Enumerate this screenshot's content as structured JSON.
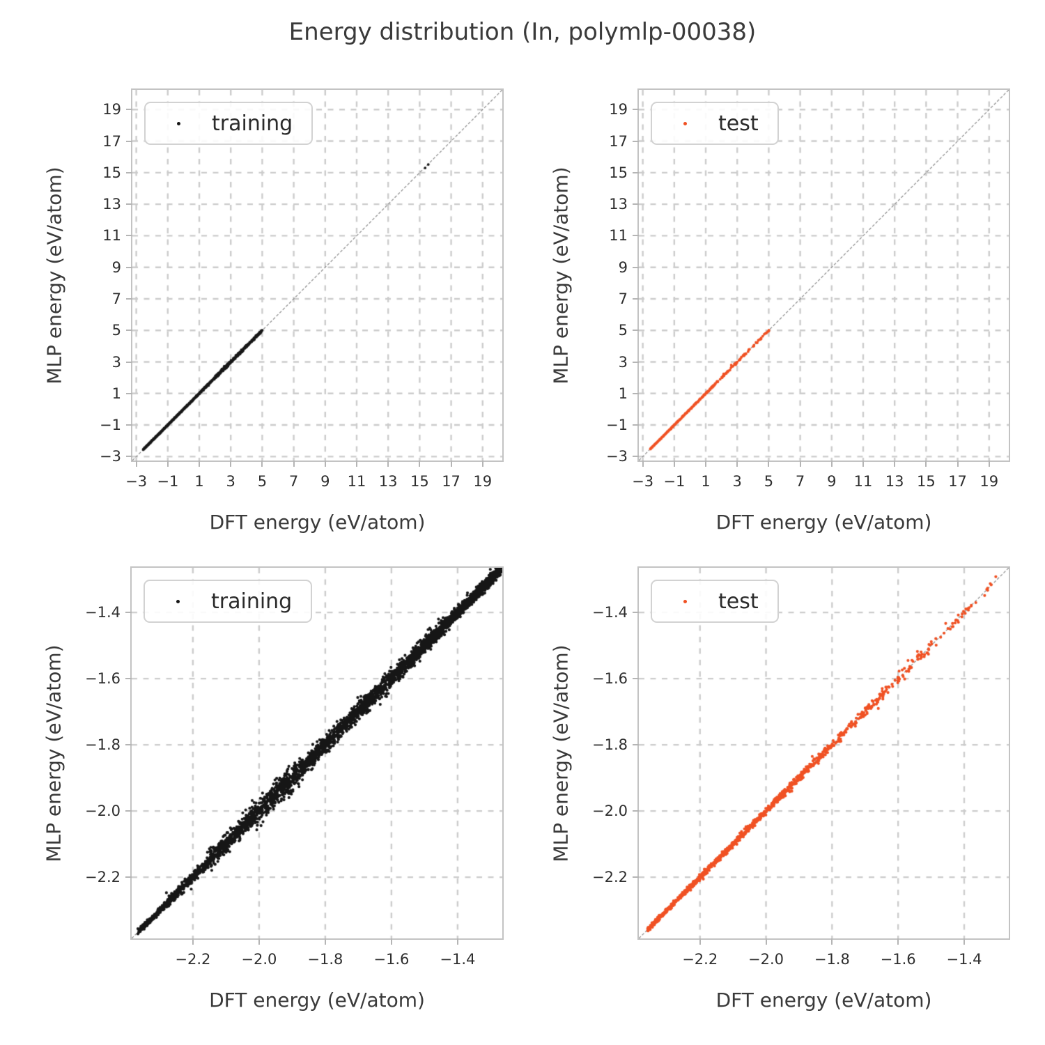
{
  "page": {
    "title": "Energy distribution (In, polymlp-00038)"
  },
  "colors": {
    "training": "#161616",
    "test": "#f05123",
    "grid": "#cccccc",
    "frame": "#c3c3c3",
    "diagonal": "#7f7f7f",
    "text": "#3a3a3a",
    "tick_text": "#2e2e2e"
  },
  "chart_data": [
    {
      "type": "scatter",
      "name": "training-overview",
      "series_label": "training",
      "color_key": "training",
      "xlabel": "DFT energy (eV/atom)",
      "ylabel": "MLP energy (eV/atom)",
      "xlim": [
        -3.25,
        20.25
      ],
      "ylim": [
        -3.25,
        20.25
      ],
      "xtickvals": [
        -3,
        -1,
        1,
        3,
        5,
        7,
        9,
        11,
        13,
        15,
        17,
        19
      ],
      "xticklabels": [
        "−3",
        "−1",
        "1",
        "3",
        "5",
        "7",
        "9",
        "11",
        "13",
        "15",
        "17",
        "19"
      ],
      "ytickvals": [
        -3,
        -1,
        1,
        3,
        5,
        7,
        9,
        11,
        13,
        15,
        17,
        19
      ],
      "yticklabels": [
        "−3",
        "−1",
        "1",
        "3",
        "5",
        "7",
        "9",
        "11",
        "13",
        "15",
        "17",
        "19"
      ],
      "identity_line": true,
      "grid": true,
      "legend_position": "upper-left",
      "marker_radius": 1.9,
      "seed": 101,
      "diagonal_segments": [
        {
          "from": -2.56,
          "to": -2.2,
          "n": 420,
          "noise": 0.012
        },
        {
          "from": -2.2,
          "to": -1.6,
          "n": 380,
          "noise": 0.014
        },
        {
          "from": -1.6,
          "to": -1.0,
          "n": 300,
          "noise": 0.015
        },
        {
          "from": -1.0,
          "to": -0.4,
          "n": 240,
          "noise": 0.016
        },
        {
          "from": -0.4,
          "to": 0.4,
          "n": 220,
          "noise": 0.018
        },
        {
          "from": 0.4,
          "to": 1.2,
          "n": 200,
          "noise": 0.02
        },
        {
          "from": 1.2,
          "to": 2.0,
          "n": 180,
          "noise": 0.025
        },
        {
          "from": 2.0,
          "to": 2.9,
          "n": 170,
          "noise": 0.045
        },
        {
          "from": 2.9,
          "to": 3.6,
          "n": 120,
          "noise": 0.04
        },
        {
          "from": 3.6,
          "to": 4.4,
          "n": 110,
          "noise": 0.035
        },
        {
          "from": 4.4,
          "to": 5.0,
          "n": 90,
          "noise": 0.03
        }
      ],
      "outliers": [
        [
          15.35,
          15.3
        ],
        [
          15.55,
          15.52
        ]
      ]
    },
    {
      "type": "scatter",
      "name": "test-overview",
      "series_label": "test",
      "color_key": "test",
      "xlabel": "DFT energy (eV/atom)",
      "ylabel": "MLP energy (eV/atom)",
      "xlim": [
        -3.25,
        20.25
      ],
      "ylim": [
        -3.25,
        20.25
      ],
      "xtickvals": [
        -3,
        -1,
        1,
        3,
        5,
        7,
        9,
        11,
        13,
        15,
        17,
        19
      ],
      "xticklabels": [
        "−3",
        "−1",
        "1",
        "3",
        "5",
        "7",
        "9",
        "11",
        "13",
        "15",
        "17",
        "19"
      ],
      "ytickvals": [
        -3,
        -1,
        1,
        3,
        5,
        7,
        9,
        11,
        13,
        15,
        17,
        19
      ],
      "yticklabels": [
        "−3",
        "−1",
        "1",
        "3",
        "5",
        "7",
        "9",
        "11",
        "13",
        "15",
        "17",
        "19"
      ],
      "identity_line": true,
      "grid": true,
      "legend_position": "upper-left",
      "marker_radius": 1.9,
      "seed": 202,
      "diagonal_segments": [
        {
          "from": -2.52,
          "to": -2.2,
          "n": 130,
          "noise": 0.01
        },
        {
          "from": -2.2,
          "to": -1.6,
          "n": 110,
          "noise": 0.012
        },
        {
          "from": -1.6,
          "to": -1.0,
          "n": 85,
          "noise": 0.014
        },
        {
          "from": -1.0,
          "to": -0.3,
          "n": 65,
          "noise": 0.015
        },
        {
          "from": -0.3,
          "to": 0.5,
          "n": 55,
          "noise": 0.018
        },
        {
          "from": 0.5,
          "to": 1.3,
          "n": 45,
          "noise": 0.022
        },
        {
          "from": 1.3,
          "to": 2.1,
          "n": 38,
          "noise": 0.03
        },
        {
          "from": 2.1,
          "to": 3.0,
          "n": 32,
          "noise": 0.05
        },
        {
          "from": 3.1,
          "to": 3.8,
          "n": 20,
          "noise": 0.04
        },
        {
          "from": 4.0,
          "to": 4.6,
          "n": 14,
          "noise": 0.035
        },
        {
          "from": 4.7,
          "to": 5.05,
          "n": 10,
          "noise": 0.03
        }
      ],
      "outliers": []
    },
    {
      "type": "scatter",
      "name": "training-zoom",
      "series_label": "training",
      "color_key": "training",
      "xlabel": "DFT energy (eV/atom)",
      "ylabel": "MLP energy (eV/atom)",
      "xlim": [
        -2.385,
        -1.265
      ],
      "ylim": [
        -2.385,
        -1.265
      ],
      "xtickvals": [
        -2.2,
        -2.0,
        -1.8,
        -1.6,
        -1.4
      ],
      "xticklabels": [
        "−2.2",
        "−2.0",
        "−1.8",
        "−1.6",
        "−1.4"
      ],
      "ytickvals": [
        -2.2,
        -2.0,
        -1.8,
        -1.6,
        -1.4
      ],
      "yticklabels": [
        "−2.2",
        "−2.0",
        "−1.8",
        "−1.6",
        "−1.4"
      ],
      "identity_line": true,
      "grid": true,
      "legend_position": "upper-left",
      "marker_radius": 2.1,
      "seed": 303,
      "diagonal_segments": [
        {
          "from": -2.365,
          "to": -2.28,
          "n": 260,
          "noise": 0.004
        },
        {
          "from": -2.28,
          "to": -2.15,
          "n": 320,
          "noise": 0.007
        },
        {
          "from": -2.15,
          "to": -2.02,
          "n": 400,
          "noise": 0.013
        },
        {
          "from": -2.02,
          "to": -1.88,
          "n": 420,
          "noise": 0.016
        },
        {
          "from": -1.88,
          "to": -1.72,
          "n": 450,
          "noise": 0.014
        },
        {
          "from": -1.72,
          "to": -1.56,
          "n": 500,
          "noise": 0.013
        },
        {
          "from": -1.56,
          "to": -1.42,
          "n": 550,
          "noise": 0.011
        },
        {
          "from": -1.42,
          "to": -1.267,
          "n": 800,
          "noise": 0.008
        }
      ],
      "outliers": [
        [
          -2.28,
          -2.247
        ],
        [
          -2.205,
          -2.236
        ],
        [
          -1.952,
          -1.906
        ],
        [
          -1.994,
          -2.044
        ],
        [
          -1.62,
          -1.585
        ]
      ]
    },
    {
      "type": "scatter",
      "name": "test-zoom",
      "series_label": "test",
      "color_key": "test",
      "xlabel": "DFT energy (eV/atom)",
      "ylabel": "MLP energy (eV/atom)",
      "xlim": [
        -2.385,
        -1.265
      ],
      "ylim": [
        -2.385,
        -1.265
      ],
      "xtickvals": [
        -2.2,
        -2.0,
        -1.8,
        -1.6,
        -1.4
      ],
      "xticklabels": [
        "−2.2",
        "−2.0",
        "−1.8",
        "−1.6",
        "−1.4"
      ],
      "ytickvals": [
        -2.2,
        -2.0,
        -1.8,
        -1.6,
        -1.4
      ],
      "yticklabels": [
        "−2.2",
        "−2.0",
        "−1.8",
        "−1.6",
        "−1.4"
      ],
      "identity_line": true,
      "grid": true,
      "legend_position": "upper-left",
      "marker_radius": 2.1,
      "seed": 404,
      "diagonal_segments": [
        {
          "from": -2.36,
          "to": -2.24,
          "n": 300,
          "noise": 0.003
        },
        {
          "from": -2.24,
          "to": -2.1,
          "n": 280,
          "noise": 0.004
        },
        {
          "from": -2.1,
          "to": -1.95,
          "n": 230,
          "noise": 0.005
        },
        {
          "from": -1.95,
          "to": -1.8,
          "n": 170,
          "noise": 0.006
        },
        {
          "from": -1.8,
          "to": -1.64,
          "n": 110,
          "noise": 0.007
        },
        {
          "from": -1.64,
          "to": -1.5,
          "n": 55,
          "noise": 0.009
        },
        {
          "from": -1.5,
          "to": -1.38,
          "n": 25,
          "noise": 0.007
        },
        {
          "from": -1.38,
          "to": -1.3,
          "n": 10,
          "noise": 0.005
        }
      ],
      "outliers": [
        [
          -1.57,
          -1.545
        ],
        [
          -1.66,
          -1.69
        ],
        [
          -1.86,
          -1.835
        ]
      ]
    }
  ]
}
